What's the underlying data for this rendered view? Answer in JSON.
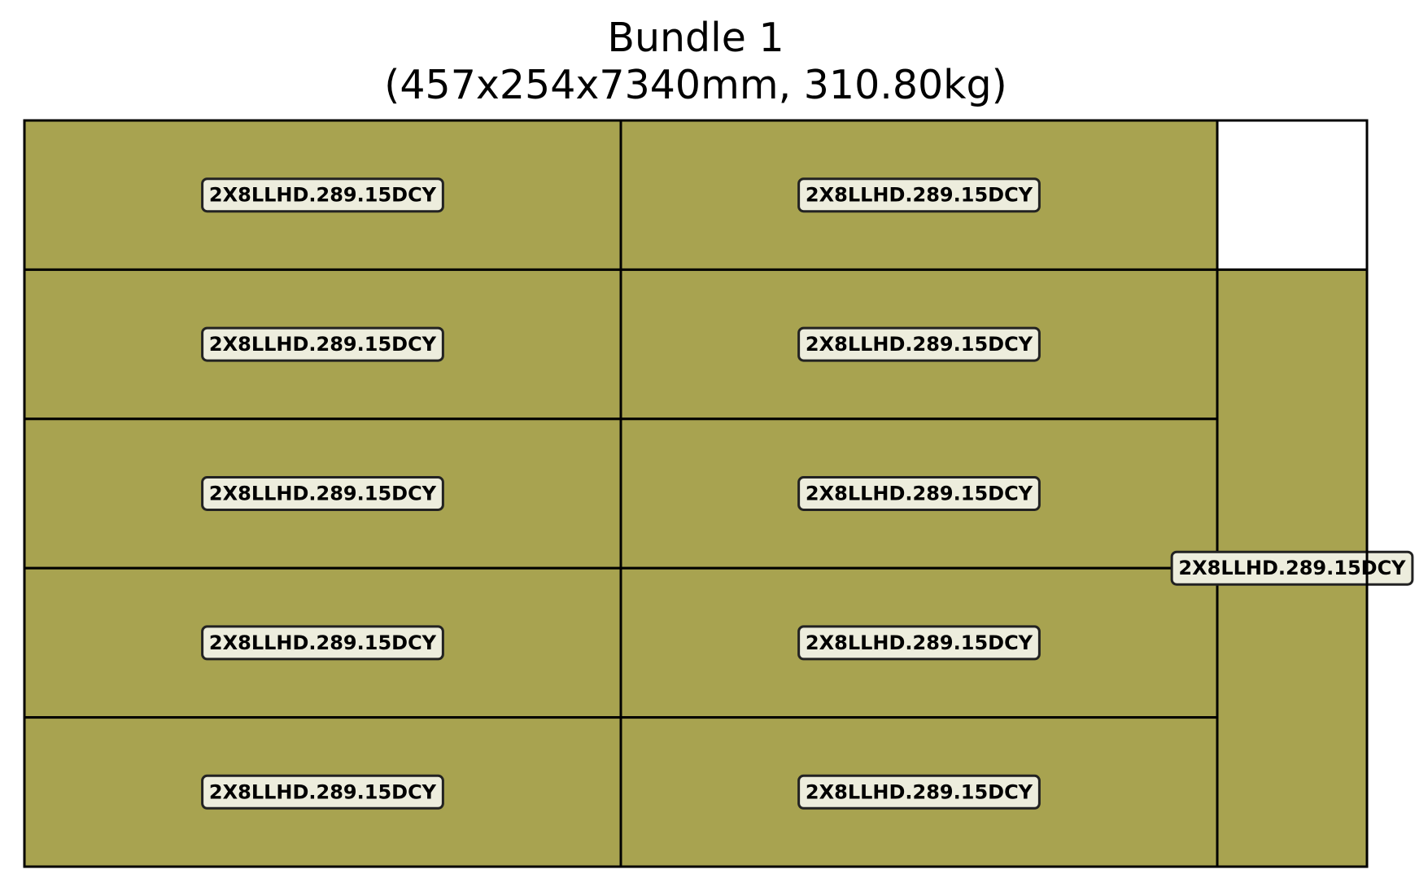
{
  "title": {
    "line1": "Bundle 1",
    "line2": "(457x254x7340mm, 310.80kg)"
  },
  "colors": {
    "piece_fill": "#a8a350",
    "label_box_fill": "#ededdd",
    "outline": "#000000",
    "empty_fill": "#ffffff"
  },
  "bundle": {
    "pieces": [
      {
        "label": "2X8LLHD.289.15DCY",
        "column": 1,
        "row": 1
      },
      {
        "label": "2X8LLHD.289.15DCY",
        "column": 2,
        "row": 1
      },
      {
        "label": "2X8LLHD.289.15DCY",
        "column": 1,
        "row": 2
      },
      {
        "label": "2X8LLHD.289.15DCY",
        "column": 2,
        "row": 2
      },
      {
        "label": "2X8LLHD.289.15DCY",
        "column": 1,
        "row": 3
      },
      {
        "label": "2X8LLHD.289.15DCY",
        "column": 2,
        "row": 3
      },
      {
        "label": "2X8LLHD.289.15DCY",
        "column": 1,
        "row": 4
      },
      {
        "label": "2X8LLHD.289.15DCY",
        "column": 2,
        "row": 4
      },
      {
        "label": "2X8LLHD.289.15DCY",
        "column": 1,
        "row": 5
      },
      {
        "label": "2X8LLHD.289.15DCY",
        "column": 2,
        "row": 5
      },
      {
        "label": "2X8LLHD.289.15DCY",
        "column": 3,
        "row": 2,
        "row_span": 4
      }
    ]
  }
}
